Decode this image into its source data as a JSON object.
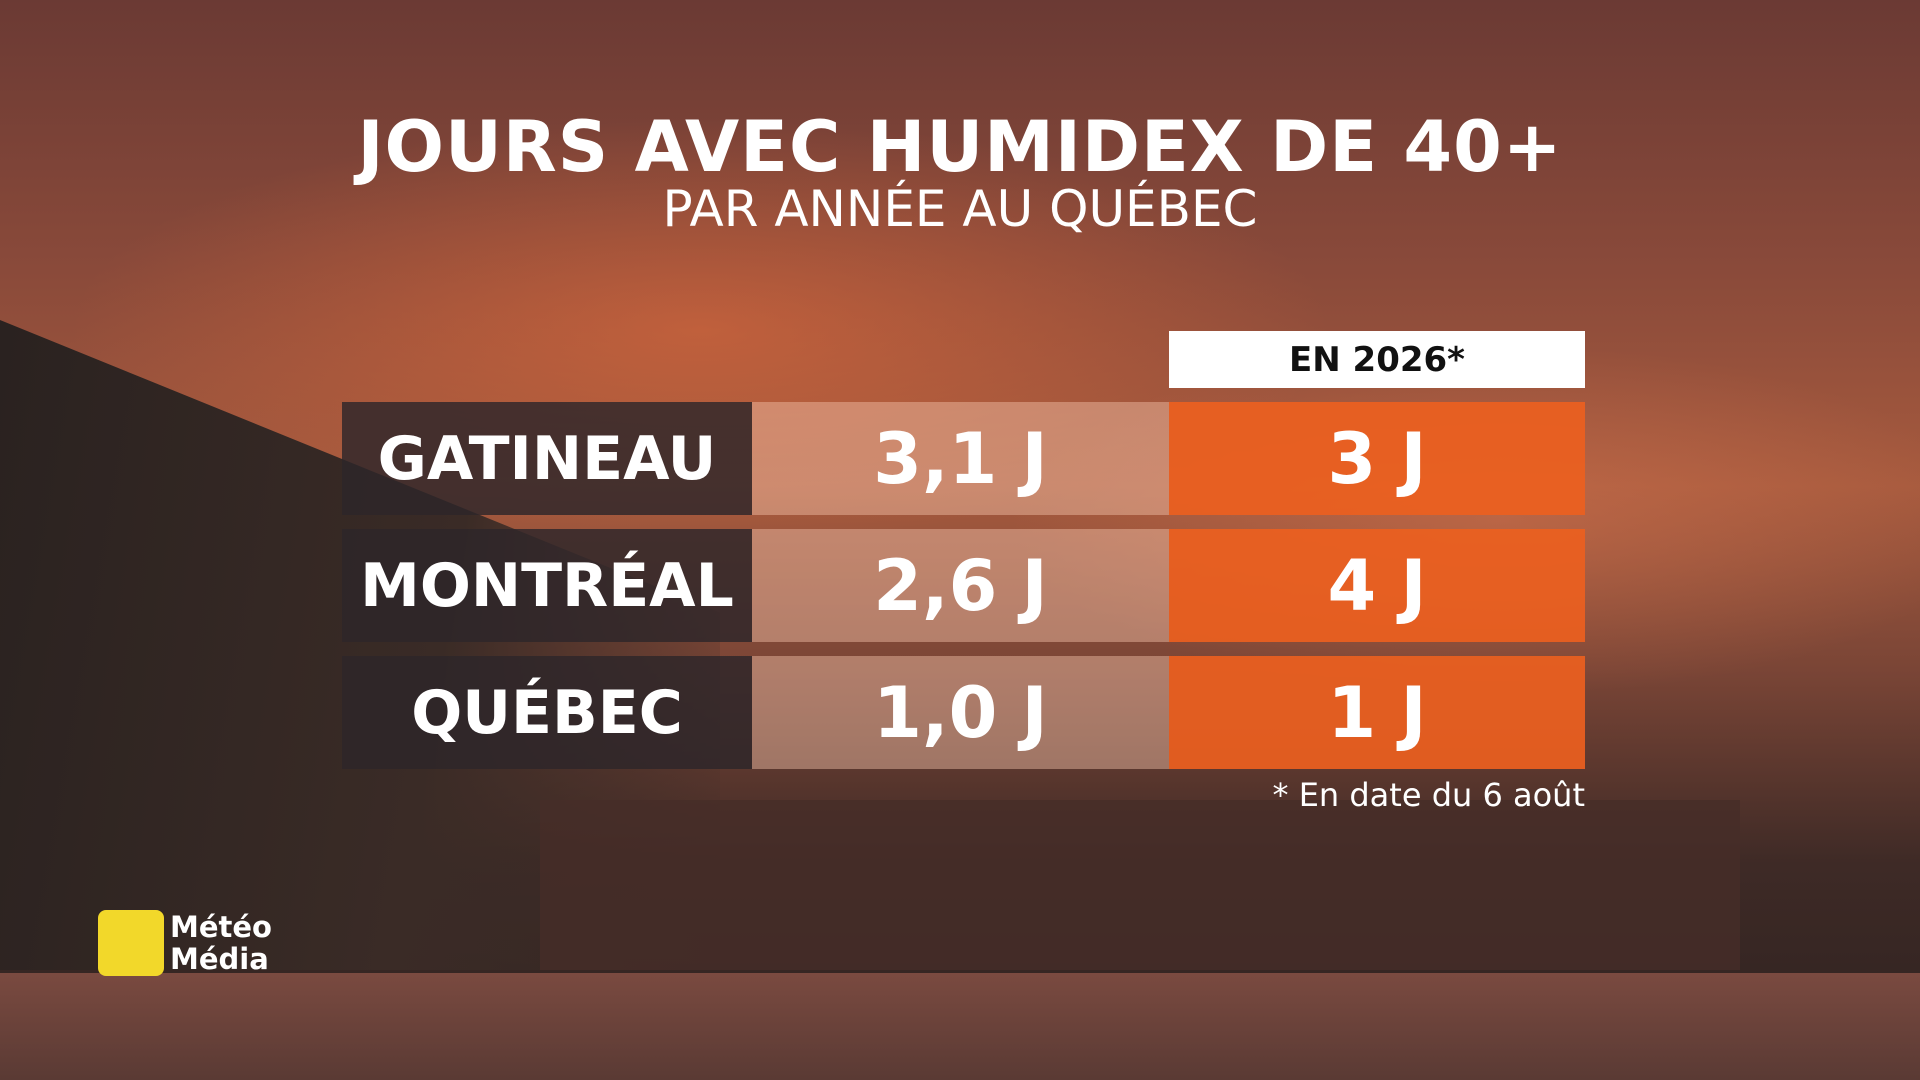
{
  "header": {
    "title": "JOURS AVEC HUMIDEX DE 40+",
    "subtitle": "PAR ANNÉE AU QUÉBEC"
  },
  "table": {
    "column_header": "EN 2026*",
    "rows": [
      [
        "GATINEAU",
        "3,1 J",
        "3 J"
      ],
      [
        "MONTRÉAL",
        "2,6 J",
        "4 J"
      ],
      [
        "QUÉBEC",
        "1,0 J",
        "1 J"
      ]
    ]
  },
  "footnote": "* En date du 6 août",
  "logo": [
    "Météo",
    "Média"
  ]
}
